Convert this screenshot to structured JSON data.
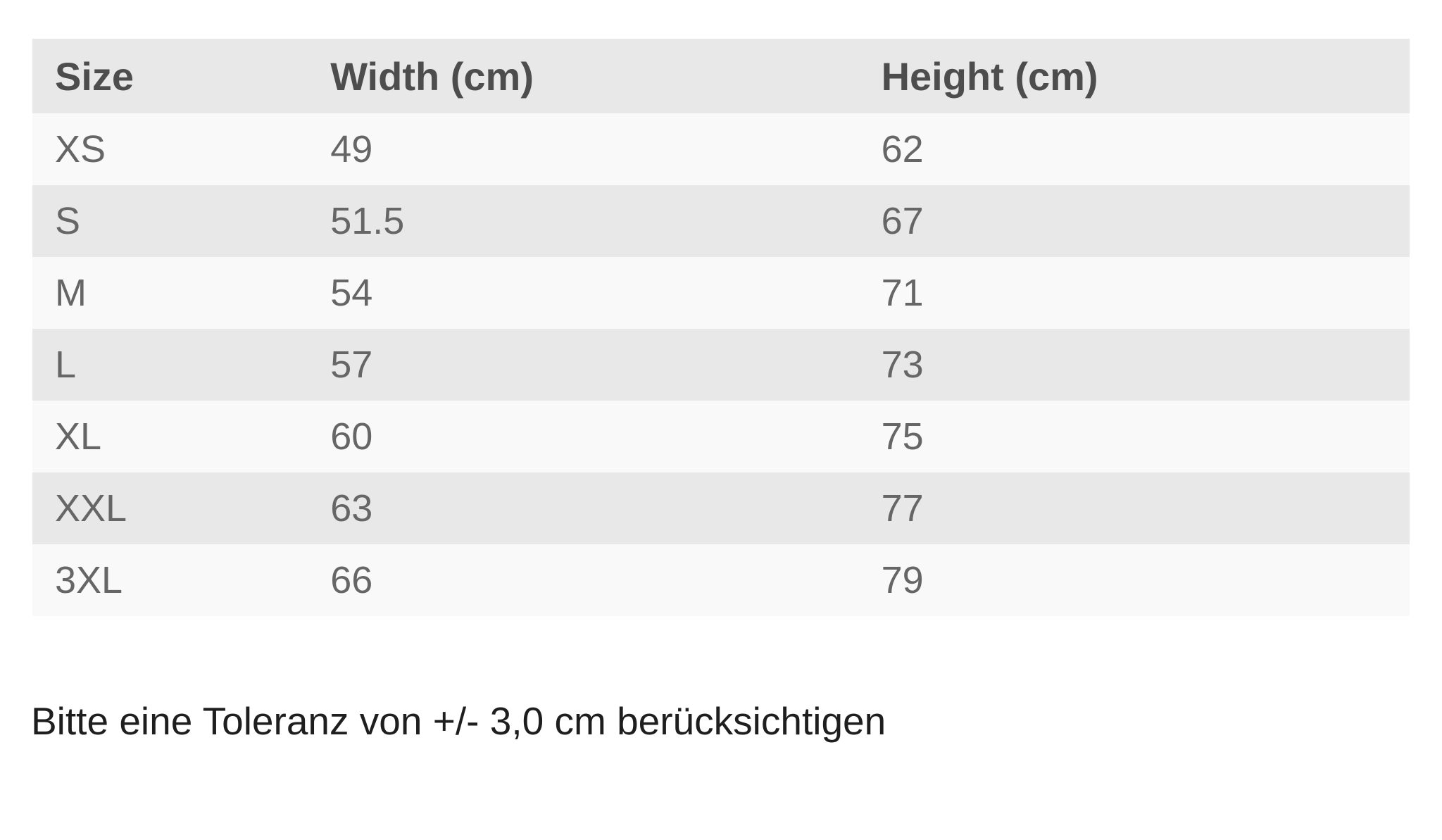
{
  "size_table": {
    "headers": [
      "Size",
      "Width (cm)",
      "Height (cm)"
    ],
    "rows": [
      {
        "size": "XS",
        "width": "49",
        "height": "62"
      },
      {
        "size": "S",
        "width": "51.5",
        "height": "67"
      },
      {
        "size": "M",
        "width": "54",
        "height": "71"
      },
      {
        "size": "L",
        "width": "57",
        "height": "73"
      },
      {
        "size": "XL",
        "width": "60",
        "height": "75"
      },
      {
        "size": "XXL",
        "width": "63",
        "height": "77"
      },
      {
        "size": "3XL",
        "width": "66",
        "height": "79"
      }
    ]
  },
  "note": "Bitte eine Toleranz von +/- 3,0 cm berücksichtigen",
  "colors": {
    "header_row_bg": "#e8e8e8",
    "stripe_even_bg": "#e8e8e8",
    "stripe_odd_bg": "#f9f9f9",
    "header_text": "#4d4d4d",
    "cell_text": "#666666",
    "note_text": "#1e1e1e",
    "page_bg": "#ffffff"
  }
}
